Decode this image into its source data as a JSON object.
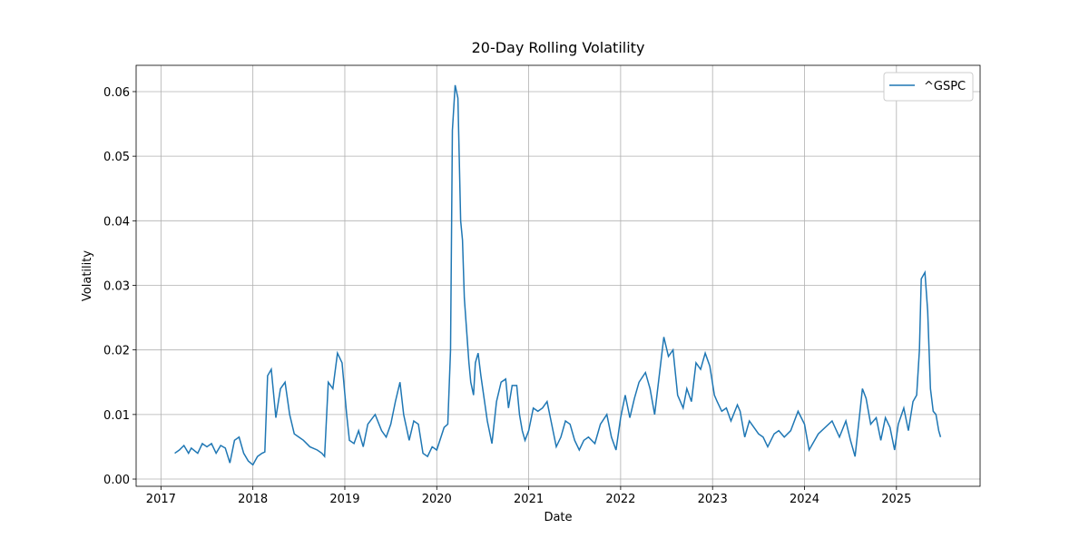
{
  "chart_data": {
    "type": "line",
    "title": "20-Day Rolling Volatility",
    "x_label": "Date",
    "y_label": "Volatility",
    "x": [
      2017.15,
      2017.2,
      2017.25,
      2017.3,
      2017.33,
      2017.4,
      2017.45,
      2017.5,
      2017.55,
      2017.6,
      2017.65,
      2017.7,
      2017.75,
      2017.8,
      2017.85,
      2017.9,
      2017.95,
      2018.0,
      2018.05,
      2018.1,
      2018.13,
      2018.16,
      2018.2,
      2018.25,
      2018.3,
      2018.35,
      2018.4,
      2018.45,
      2018.5,
      2018.55,
      2018.62,
      2018.7,
      2018.75,
      2018.78,
      2018.82,
      2018.87,
      2018.92,
      2018.97,
      2019.02,
      2019.05,
      2019.1,
      2019.15,
      2019.2,
      2019.25,
      2019.33,
      2019.4,
      2019.45,
      2019.5,
      2019.55,
      2019.6,
      2019.64,
      2019.7,
      2019.75,
      2019.8,
      2019.85,
      2019.9,
      2019.95,
      2020.0,
      2020.08,
      2020.12,
      2020.15,
      2020.17,
      2020.2,
      2020.23,
      2020.26,
      2020.28,
      2020.3,
      2020.32,
      2020.35,
      2020.37,
      2020.4,
      2020.42,
      2020.45,
      2020.48,
      2020.52,
      2020.55,
      2020.6,
      2020.65,
      2020.7,
      2020.75,
      2020.78,
      2020.82,
      2020.87,
      2020.9,
      2020.93,
      2020.96,
      2021.0,
      2021.05,
      2021.1,
      2021.15,
      2021.2,
      2021.25,
      2021.3,
      2021.35,
      2021.4,
      2021.45,
      2021.5,
      2021.55,
      2021.6,
      2021.65,
      2021.72,
      2021.78,
      2021.85,
      2021.9,
      2021.95,
      2022.0,
      2022.05,
      2022.1,
      2022.15,
      2022.2,
      2022.27,
      2022.32,
      2022.37,
      2022.42,
      2022.47,
      2022.52,
      2022.57,
      2022.62,
      2022.68,
      2022.72,
      2022.77,
      2022.82,
      2022.87,
      2022.92,
      2022.97,
      2023.02,
      2023.05,
      2023.1,
      2023.15,
      2023.2,
      2023.27,
      2023.3,
      2023.35,
      2023.4,
      2023.45,
      2023.5,
      2023.55,
      2023.6,
      2023.67,
      2023.72,
      2023.78,
      2023.85,
      2023.93,
      2024.0,
      2024.05,
      2024.15,
      2024.3,
      2024.38,
      2024.45,
      2024.5,
      2024.55,
      2024.6,
      2024.63,
      2024.67,
      2024.72,
      2024.78,
      2024.83,
      2024.88,
      2024.93,
      2024.98,
      2025.02,
      2025.08,
      2025.13,
      2025.18,
      2025.22,
      2025.25,
      2025.27,
      2025.31,
      2025.34,
      2025.37,
      2025.4,
      2025.43,
      2025.46,
      2025.48
    ],
    "series": [
      {
        "name": "^GSPC",
        "color": "#1f77b4",
        "values": [
          0.004,
          0.0045,
          0.0052,
          0.004,
          0.0048,
          0.004,
          0.0055,
          0.005,
          0.0055,
          0.004,
          0.0052,
          0.0048,
          0.0025,
          0.006,
          0.0065,
          0.004,
          0.0028,
          0.0022,
          0.0035,
          0.004,
          0.0042,
          0.016,
          0.017,
          0.0095,
          0.014,
          0.015,
          0.01,
          0.007,
          0.0065,
          0.006,
          0.005,
          0.0045,
          0.004,
          0.0035,
          0.015,
          0.014,
          0.0195,
          0.018,
          0.01,
          0.006,
          0.0055,
          0.0075,
          0.005,
          0.0085,
          0.01,
          0.0075,
          0.0065,
          0.0085,
          0.012,
          0.015,
          0.01,
          0.006,
          0.009,
          0.0085,
          0.004,
          0.0035,
          0.005,
          0.0045,
          0.008,
          0.0085,
          0.02,
          0.054,
          0.061,
          0.059,
          0.04,
          0.037,
          0.028,
          0.024,
          0.018,
          0.015,
          0.013,
          0.018,
          0.0195,
          0.016,
          0.012,
          0.009,
          0.0055,
          0.012,
          0.015,
          0.0155,
          0.011,
          0.0145,
          0.0145,
          0.01,
          0.0075,
          0.006,
          0.0075,
          0.011,
          0.0105,
          0.011,
          0.012,
          0.0085,
          0.005,
          0.0065,
          0.009,
          0.0085,
          0.006,
          0.0045,
          0.006,
          0.0065,
          0.0055,
          0.0085,
          0.01,
          0.0065,
          0.0045,
          0.0095,
          0.013,
          0.0095,
          0.0125,
          0.015,
          0.0165,
          0.014,
          0.01,
          0.016,
          0.022,
          0.019,
          0.02,
          0.013,
          0.011,
          0.014,
          0.012,
          0.018,
          0.017,
          0.0195,
          0.0175,
          0.013,
          0.012,
          0.0105,
          0.011,
          0.009,
          0.0115,
          0.0105,
          0.0065,
          0.009,
          0.008,
          0.007,
          0.0065,
          0.005,
          0.007,
          0.0075,
          0.0065,
          0.0075,
          0.0105,
          0.0085,
          0.0045,
          0.007,
          0.009,
          0.0065,
          0.009,
          0.006,
          0.0035,
          0.01,
          0.014,
          0.0125,
          0.0085,
          0.0095,
          0.006,
          0.0095,
          0.008,
          0.0045,
          0.0085,
          0.011,
          0.0075,
          0.012,
          0.013,
          0.02,
          0.031,
          0.032,
          0.026,
          0.014,
          0.0105,
          0.01,
          0.0075,
          0.0065
        ]
      }
    ],
    "xlim": [
      2016.73,
      2025.91
    ],
    "xticks": [
      2017,
      2018,
      2019,
      2020,
      2021,
      2022,
      2023,
      2024,
      2025
    ],
    "ylim": [
      -0.00112,
      0.06407
    ],
    "yticks": [
      {
        "value": 0,
        "label": "0.00"
      },
      {
        "value": 0.01,
        "label": "0.01"
      },
      {
        "value": 0.02,
        "label": "0.02"
      },
      {
        "value": 0.03,
        "label": "0.03"
      },
      {
        "value": 0.04,
        "label": "0.04"
      },
      {
        "value": 0.05,
        "label": "0.05"
      },
      {
        "value": 0.06,
        "label": "0.06"
      }
    ],
    "grid": true,
    "legend": "upper right"
  }
}
